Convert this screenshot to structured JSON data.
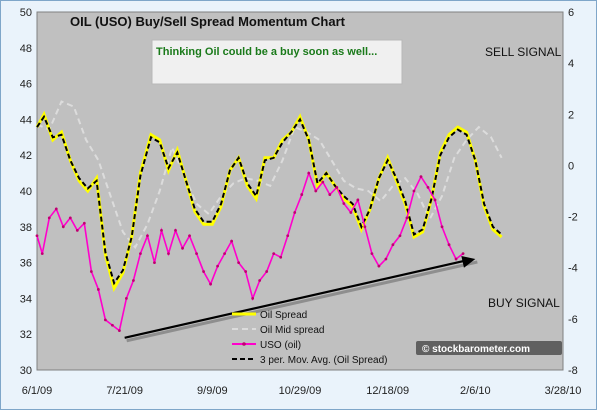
{
  "chart_data": {
    "type": "line",
    "title": "OIL (USO) Buy/Sell Spread Momentum Chart",
    "annotation_box": "Thinking Oil could be a buy soon as well...",
    "signals": {
      "sell": "SELL SIGNAL",
      "buy": "BUY SIGNAL"
    },
    "watermark": "© stockbarometer.com",
    "x_ticks": [
      "6/1/09",
      "7/21/09",
      "9/9/09",
      "10/29/09",
      "12/18/09",
      "2/6/10",
      "3/28/10"
    ],
    "x_range": [
      "6/1/09",
      "3/28/10"
    ],
    "y_left": {
      "min": 30,
      "max": 50,
      "ticks": [
        30,
        32,
        34,
        36,
        38,
        40,
        42,
        44,
        46,
        48,
        50
      ]
    },
    "y_right": {
      "min": -8,
      "max": 6,
      "ticks": [
        -8,
        -6,
        -4,
        -2,
        0,
        2,
        4,
        6
      ]
    },
    "grid": false,
    "legend_position": "bottom-right",
    "colors": {
      "plot_bg": "#c0c0c0",
      "frame_bg": "#eaf3fb",
      "oil_spread": "#ffff00",
      "oil_mid": "#dcdcdc",
      "uso": "#ff00cc",
      "mov_avg": "#000000",
      "note_bg": "#f0f0f0",
      "note_text": "#1a7a1a",
      "trend_arrow": "#000000"
    },
    "series": [
      {
        "name": "Oil Spread",
        "axis": "right",
        "points": [
          [
            "6/1/09",
            1.5
          ],
          [
            "6/5/09",
            2.0
          ],
          [
            "6/10/09",
            1.0
          ],
          [
            "6/15/09",
            1.3
          ],
          [
            "6/20/09",
            0.2
          ],
          [
            "6/25/09",
            -0.6
          ],
          [
            "6/30/09",
            -1.0
          ],
          [
            "7/5/09",
            -0.5
          ],
          [
            "7/10/09",
            -3.5
          ],
          [
            "7/15/09",
            -4.8
          ],
          [
            "7/20/09",
            -4.2
          ],
          [
            "7/25/09",
            -2.8
          ],
          [
            "7/30/09",
            -0.3
          ],
          [
            "8/5/09",
            1.2
          ],
          [
            "8/10/09",
            1.0
          ],
          [
            "8/15/09",
            -0.2
          ],
          [
            "8/20/09",
            0.6
          ],
          [
            "8/25/09",
            -0.6
          ],
          [
            "8/30/09",
            -1.8
          ],
          [
            "9/4/09",
            -2.3
          ],
          [
            "9/9/09",
            -2.3
          ],
          [
            "9/14/09",
            -1.6
          ],
          [
            "9/19/09",
            -0.2
          ],
          [
            "9/24/09",
            0.3
          ],
          [
            "9/29/09",
            -0.8
          ],
          [
            "10/4/09",
            -1.3
          ],
          [
            "10/9/09",
            0.3
          ],
          [
            "10/14/09",
            0.3
          ],
          [
            "10/19/09",
            1.0
          ],
          [
            "10/24/09",
            1.3
          ],
          [
            "10/29/09",
            1.9
          ],
          [
            "11/3/09",
            1.0
          ],
          [
            "11/8/09",
            -0.8
          ],
          [
            "11/13/09",
            -0.3
          ],
          [
            "11/18/09",
            -0.8
          ],
          [
            "11/23/09",
            -1.3
          ],
          [
            "11/28/09",
            -1.6
          ],
          [
            "12/3/09",
            -2.5
          ],
          [
            "12/8/09",
            -1.7
          ],
          [
            "12/13/09",
            -0.5
          ],
          [
            "12/18/09",
            0.3
          ],
          [
            "12/23/09",
            -0.6
          ],
          [
            "12/28/09",
            -1.5
          ],
          [
            "1/2/10",
            -2.8
          ],
          [
            "1/7/10",
            -2.6
          ],
          [
            "1/12/10",
            -1.3
          ],
          [
            "1/17/10",
            0.5
          ],
          [
            "1/22/10",
            1.2
          ],
          [
            "1/27/10",
            1.5
          ],
          [
            "2/1/10",
            1.3
          ],
          [
            "2/6/10",
            0.2
          ],
          [
            "2/11/10",
            -1.6
          ],
          [
            "2/16/10",
            -2.5
          ],
          [
            "2/21/10",
            -2.8
          ]
        ]
      },
      {
        "name": "Oil Mid spread",
        "axis": "right",
        "points": [
          [
            "6/1/09",
            1.6
          ],
          [
            "6/8/09",
            1.4
          ],
          [
            "6/15/09",
            2.5
          ],
          [
            "6/22/09",
            2.3
          ],
          [
            "6/29/09",
            1.0
          ],
          [
            "7/6/09",
            0.2
          ],
          [
            "7/13/09",
            -1.2
          ],
          [
            "7/20/09",
            -2.6
          ],
          [
            "7/27/09",
            -3.2
          ],
          [
            "8/3/09",
            -2.3
          ],
          [
            "8/10/09",
            -1.0
          ],
          [
            "8/17/09",
            0.7
          ],
          [
            "8/24/09",
            -0.4
          ],
          [
            "8/31/09",
            -1.5
          ],
          [
            "9/7/09",
            -1.9
          ],
          [
            "9/14/09",
            -1.2
          ],
          [
            "9/21/09",
            -0.7
          ],
          [
            "9/28/09",
            -0.5
          ],
          [
            "10/5/09",
            -0.6
          ],
          [
            "10/12/09",
            -0.8
          ],
          [
            "10/19/09",
            0.2
          ],
          [
            "10/26/09",
            1.5
          ],
          [
            "11/2/09",
            1.3
          ],
          [
            "11/9/09",
            1.0
          ],
          [
            "11/16/09",
            0.2
          ],
          [
            "11/23/09",
            -0.6
          ],
          [
            "11/30/09",
            -0.9
          ],
          [
            "12/7/09",
            -1.0
          ],
          [
            "12/14/09",
            -1.4
          ],
          [
            "12/21/09",
            -0.8
          ],
          [
            "12/28/09",
            -0.5
          ],
          [
            "1/4/10",
            -1.1
          ],
          [
            "1/11/10",
            -2.1
          ],
          [
            "1/18/10",
            -1.2
          ],
          [
            "1/25/10",
            0.3
          ],
          [
            "2/1/10",
            1.0
          ],
          [
            "2/8/10",
            1.5
          ],
          [
            "2/15/10",
            1.1
          ],
          [
            "2/21/10",
            0.3
          ]
        ]
      },
      {
        "name": "USO (oil)",
        "axis": "left",
        "points": [
          [
            "6/1/09",
            37.5
          ],
          [
            "6/4/09",
            36.5
          ],
          [
            "6/8/09",
            38.5
          ],
          [
            "6/12/09",
            39.0
          ],
          [
            "6/16/09",
            38.0
          ],
          [
            "6/20/09",
            38.5
          ],
          [
            "6/24/09",
            37.8
          ],
          [
            "6/28/09",
            38.2
          ],
          [
            "7/2/09",
            35.5
          ],
          [
            "7/6/09",
            34.5
          ],
          [
            "7/10/09",
            32.8
          ],
          [
            "7/14/09",
            32.5
          ],
          [
            "7/18/09",
            32.2
          ],
          [
            "7/22/09",
            34.0
          ],
          [
            "7/26/09",
            35.0
          ],
          [
            "7/30/09",
            36.5
          ],
          [
            "8/3/09",
            37.5
          ],
          [
            "8/7/09",
            36.0
          ],
          [
            "8/11/09",
            37.8
          ],
          [
            "8/15/09",
            36.5
          ],
          [
            "8/19/09",
            37.8
          ],
          [
            "8/23/09",
            36.8
          ],
          [
            "8/27/09",
            37.5
          ],
          [
            "8/31/09",
            36.5
          ],
          [
            "9/4/09",
            35.5
          ],
          [
            "9/8/09",
            34.8
          ],
          [
            "9/12/09",
            35.8
          ],
          [
            "9/16/09",
            36.5
          ],
          [
            "9/20/09",
            37.2
          ],
          [
            "9/24/09",
            36.0
          ],
          [
            "9/28/09",
            35.5
          ],
          [
            "10/2/09",
            34.0
          ],
          [
            "10/6/09",
            35.0
          ],
          [
            "10/10/09",
            35.5
          ],
          [
            "10/14/09",
            36.5
          ],
          [
            "10/18/09",
            36.3
          ],
          [
            "10/22/09",
            37.5
          ],
          [
            "10/26/09",
            38.8
          ],
          [
            "10/30/09",
            39.8
          ],
          [
            "11/3/09",
            41.0
          ],
          [
            "11/7/09",
            40.0
          ],
          [
            "11/11/09",
            40.5
          ],
          [
            "11/15/09",
            39.8
          ],
          [
            "11/19/09",
            40.2
          ],
          [
            "11/23/09",
            39.3
          ],
          [
            "11/27/09",
            38.8
          ],
          [
            "12/1/09",
            39.5
          ],
          [
            "12/5/09",
            38.0
          ],
          [
            "12/9/09",
            36.5
          ],
          [
            "12/13/09",
            35.8
          ],
          [
            "12/17/09",
            36.2
          ],
          [
            "12/21/09",
            37.0
          ],
          [
            "12/25/09",
            37.5
          ],
          [
            "12/29/09",
            38.5
          ],
          [
            "1/2/10",
            40.0
          ],
          [
            "1/6/10",
            40.8
          ],
          [
            "1/10/10",
            40.2
          ],
          [
            "1/14/10",
            39.5
          ],
          [
            "1/18/10",
            38.0
          ],
          [
            "1/22/10",
            37.0
          ],
          [
            "1/26/10",
            36.2
          ],
          [
            "1/30/10",
            36.5
          ]
        ]
      },
      {
        "name": "3 per. Mov. Avg. (Oil Spread)",
        "axis": "right",
        "points": [
          [
            "6/1/09",
            1.5
          ],
          [
            "6/5/09",
            1.9
          ],
          [
            "6/10/09",
            1.1
          ],
          [
            "6/15/09",
            1.2
          ],
          [
            "6/20/09",
            0.2
          ],
          [
            "6/25/09",
            -0.5
          ],
          [
            "6/30/09",
            -0.9
          ],
          [
            "7/5/09",
            -0.6
          ],
          [
            "7/10/09",
            -3.4
          ],
          [
            "7/15/09",
            -4.6
          ],
          [
            "7/20/09",
            -4.1
          ],
          [
            "7/25/09",
            -2.8
          ],
          [
            "7/30/09",
            -0.4
          ],
          [
            "8/5/09",
            1.1
          ],
          [
            "8/10/09",
            0.9
          ],
          [
            "8/15/09",
            -0.1
          ],
          [
            "8/20/09",
            0.5
          ],
          [
            "8/25/09",
            -0.6
          ],
          [
            "8/30/09",
            -1.7
          ],
          [
            "9/4/09",
            -2.2
          ],
          [
            "9/9/09",
            -2.2
          ],
          [
            "9/14/09",
            -1.5
          ],
          [
            "9/19/09",
            -0.2
          ],
          [
            "9/24/09",
            0.3
          ],
          [
            "9/29/09",
            -0.7
          ],
          [
            "10/4/09",
            -1.2
          ],
          [
            "10/9/09",
            0.2
          ],
          [
            "10/14/09",
            0.3
          ],
          [
            "10/19/09",
            0.9
          ],
          [
            "10/24/09",
            1.3
          ],
          [
            "10/29/09",
            1.8
          ],
          [
            "11/3/09",
            1.0
          ],
          [
            "11/8/09",
            -0.7
          ],
          [
            "11/13/09",
            -0.3
          ],
          [
            "11/18/09",
            -0.8
          ],
          [
            "11/23/09",
            -1.2
          ],
          [
            "11/28/09",
            -1.5
          ],
          [
            "12/3/09",
            -2.4
          ],
          [
            "12/8/09",
            -1.7
          ],
          [
            "12/13/09",
            -0.5
          ],
          [
            "12/18/09",
            0.2
          ],
          [
            "12/23/09",
            -0.5
          ],
          [
            "12/28/09",
            -1.4
          ],
          [
            "1/2/10",
            -2.7
          ],
          [
            "1/7/10",
            -2.5
          ],
          [
            "1/12/10",
            -1.3
          ],
          [
            "1/17/10",
            0.4
          ],
          [
            "1/22/10",
            1.1
          ],
          [
            "1/27/10",
            1.4
          ],
          [
            "2/1/10",
            1.2
          ],
          [
            "2/6/10",
            0.2
          ],
          [
            "2/11/10",
            -1.5
          ],
          [
            "2/16/10",
            -2.4
          ],
          [
            "2/21/10",
            -2.7
          ]
        ]
      }
    ],
    "trend_arrow": {
      "from": [
        "7/21/09",
        31.8
      ],
      "to": [
        "2/6/10",
        36.2
      ]
    }
  }
}
